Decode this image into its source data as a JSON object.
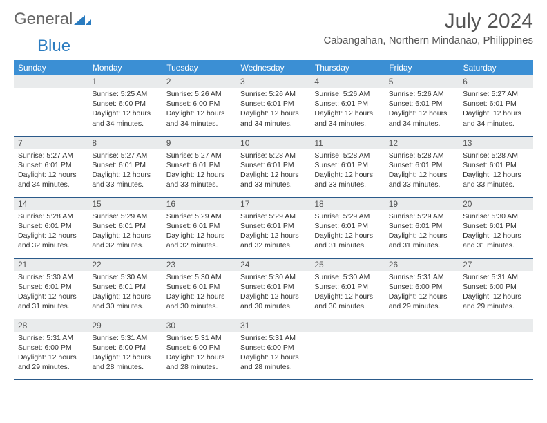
{
  "brand": {
    "part1": "General",
    "part2": "Blue"
  },
  "title": "July 2024",
  "location": "Cabangahan, Northern Mindanao, Philippines",
  "colors": {
    "header_bg": "#3b8fd4",
    "cell_border": "#2b5a8a",
    "daynum_bg": "#e9ebec",
    "text": "#333333",
    "title_text": "#555555"
  },
  "weekdays": [
    "Sunday",
    "Monday",
    "Tuesday",
    "Wednesday",
    "Thursday",
    "Friday",
    "Saturday"
  ],
  "weeks": [
    [
      {
        "n": "",
        "sr": "",
        "ss": "",
        "dl": ""
      },
      {
        "n": "1",
        "sr": "5:25 AM",
        "ss": "6:00 PM",
        "dl": "12 hours and 34 minutes."
      },
      {
        "n": "2",
        "sr": "5:26 AM",
        "ss": "6:00 PM",
        "dl": "12 hours and 34 minutes."
      },
      {
        "n": "3",
        "sr": "5:26 AM",
        "ss": "6:01 PM",
        "dl": "12 hours and 34 minutes."
      },
      {
        "n": "4",
        "sr": "5:26 AM",
        "ss": "6:01 PM",
        "dl": "12 hours and 34 minutes."
      },
      {
        "n": "5",
        "sr": "5:26 AM",
        "ss": "6:01 PM",
        "dl": "12 hours and 34 minutes."
      },
      {
        "n": "6",
        "sr": "5:27 AM",
        "ss": "6:01 PM",
        "dl": "12 hours and 34 minutes."
      }
    ],
    [
      {
        "n": "7",
        "sr": "5:27 AM",
        "ss": "6:01 PM",
        "dl": "12 hours and 34 minutes."
      },
      {
        "n": "8",
        "sr": "5:27 AM",
        "ss": "6:01 PM",
        "dl": "12 hours and 33 minutes."
      },
      {
        "n": "9",
        "sr": "5:27 AM",
        "ss": "6:01 PM",
        "dl": "12 hours and 33 minutes."
      },
      {
        "n": "10",
        "sr": "5:28 AM",
        "ss": "6:01 PM",
        "dl": "12 hours and 33 minutes."
      },
      {
        "n": "11",
        "sr": "5:28 AM",
        "ss": "6:01 PM",
        "dl": "12 hours and 33 minutes."
      },
      {
        "n": "12",
        "sr": "5:28 AM",
        "ss": "6:01 PM",
        "dl": "12 hours and 33 minutes."
      },
      {
        "n": "13",
        "sr": "5:28 AM",
        "ss": "6:01 PM",
        "dl": "12 hours and 33 minutes."
      }
    ],
    [
      {
        "n": "14",
        "sr": "5:28 AM",
        "ss": "6:01 PM",
        "dl": "12 hours and 32 minutes."
      },
      {
        "n": "15",
        "sr": "5:29 AM",
        "ss": "6:01 PM",
        "dl": "12 hours and 32 minutes."
      },
      {
        "n": "16",
        "sr": "5:29 AM",
        "ss": "6:01 PM",
        "dl": "12 hours and 32 minutes."
      },
      {
        "n": "17",
        "sr": "5:29 AM",
        "ss": "6:01 PM",
        "dl": "12 hours and 32 minutes."
      },
      {
        "n": "18",
        "sr": "5:29 AM",
        "ss": "6:01 PM",
        "dl": "12 hours and 31 minutes."
      },
      {
        "n": "19",
        "sr": "5:29 AM",
        "ss": "6:01 PM",
        "dl": "12 hours and 31 minutes."
      },
      {
        "n": "20",
        "sr": "5:30 AM",
        "ss": "6:01 PM",
        "dl": "12 hours and 31 minutes."
      }
    ],
    [
      {
        "n": "21",
        "sr": "5:30 AM",
        "ss": "6:01 PM",
        "dl": "12 hours and 31 minutes."
      },
      {
        "n": "22",
        "sr": "5:30 AM",
        "ss": "6:01 PM",
        "dl": "12 hours and 30 minutes."
      },
      {
        "n": "23",
        "sr": "5:30 AM",
        "ss": "6:01 PM",
        "dl": "12 hours and 30 minutes."
      },
      {
        "n": "24",
        "sr": "5:30 AM",
        "ss": "6:01 PM",
        "dl": "12 hours and 30 minutes."
      },
      {
        "n": "25",
        "sr": "5:30 AM",
        "ss": "6:01 PM",
        "dl": "12 hours and 30 minutes."
      },
      {
        "n": "26",
        "sr": "5:31 AM",
        "ss": "6:00 PM",
        "dl": "12 hours and 29 minutes."
      },
      {
        "n": "27",
        "sr": "5:31 AM",
        "ss": "6:00 PM",
        "dl": "12 hours and 29 minutes."
      }
    ],
    [
      {
        "n": "28",
        "sr": "5:31 AM",
        "ss": "6:00 PM",
        "dl": "12 hours and 29 minutes."
      },
      {
        "n": "29",
        "sr": "5:31 AM",
        "ss": "6:00 PM",
        "dl": "12 hours and 28 minutes."
      },
      {
        "n": "30",
        "sr": "5:31 AM",
        "ss": "6:00 PM",
        "dl": "12 hours and 28 minutes."
      },
      {
        "n": "31",
        "sr": "5:31 AM",
        "ss": "6:00 PM",
        "dl": "12 hours and 28 minutes."
      },
      {
        "n": "",
        "sr": "",
        "ss": "",
        "dl": ""
      },
      {
        "n": "",
        "sr": "",
        "ss": "",
        "dl": ""
      },
      {
        "n": "",
        "sr": "",
        "ss": "",
        "dl": ""
      }
    ]
  ],
  "labels": {
    "sunrise": "Sunrise:",
    "sunset": "Sunset:",
    "daylight": "Daylight:"
  }
}
